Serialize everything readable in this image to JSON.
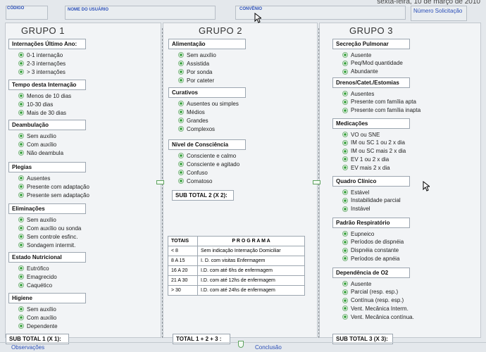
{
  "header": {
    "date_text": "sexta-feira, 10 de março de 2010",
    "codigo_label": "CÓDIGO",
    "nome_usuario_label": "NOME DO USUÁRIO",
    "convenio_label": "CONVÊNIO",
    "numero_solicitacao_label": "Número Solicitação"
  },
  "grupo1": {
    "title": "GRUPO 1",
    "sections": [
      {
        "title": "Internações Último Ano:",
        "options": [
          "0-1 internação",
          "2-3 internações",
          "> 3 internações"
        ]
      },
      {
        "title": "Tempo desta Internação",
        "options": [
          "Menos de 10 dias",
          "10-30 dias",
          "Mais de 30 dias"
        ]
      },
      {
        "title": "Deambulação",
        "options": [
          "Sem auxílio",
          "Com auxílio",
          "Não deambula"
        ]
      },
      {
        "title": "Plegias",
        "options": [
          "Ausentes",
          "Presente com adaptação",
          "Presente sem adaptação"
        ]
      },
      {
        "title": "Eliminações",
        "options": [
          "Sem auxílio",
          "Com auxílio ou sonda",
          "Sem controle esfinc.",
          "Sondagem intermit."
        ]
      },
      {
        "title": "Estado Nutricional",
        "options": [
          "Eutrófico",
          "Emagrecido",
          "Caquético"
        ]
      },
      {
        "title": "Higiene",
        "options": [
          "Sem auxílio",
          "Com auxílio",
          "Dependente"
        ]
      }
    ],
    "subtotal": "SUB TOTAL 1 (X 1):"
  },
  "grupo2": {
    "title": "GRUPO 2",
    "sections": [
      {
        "title": "Alimentação",
        "options": [
          "Sem auxílio",
          "Assistida",
          "Por sonda",
          "Por cateter"
        ]
      },
      {
        "title": "Curativos",
        "options": [
          "Ausentes ou simples",
          "Médios",
          "Grandes",
          "Complexos"
        ]
      },
      {
        "title": "Nível de Consciência",
        "options": [
          "Consciente e calmo",
          "Consciente e agitado",
          "Confuso",
          "Comatoso"
        ]
      }
    ],
    "subtotal": "SUB TOTAL 2 (X 2):"
  },
  "grupo3": {
    "title": "GRUPO 3",
    "sections": [
      {
        "title": "Secreção Pulmonar",
        "options": [
          "Ausente",
          "Peq/Mod quantidade",
          "Abundante"
        ]
      },
      {
        "title": "Drenos/Catet./Estomias",
        "options": [
          "Ausentes",
          "Presente com família apta",
          "Presente com família inapta"
        ]
      },
      {
        "title": "Medicações",
        "options": [
          "VO ou SNE",
          "IM ou SC 1 ou 2 x dia",
          "IM ou SC mais 2 x dia",
          "EV 1 ou 2 x dia",
          "EV mais 2 x dia"
        ]
      },
      {
        "title": "Quadro Clínico",
        "options": [
          "Estável",
          "Instabilidade parcial",
          "Instável"
        ]
      },
      {
        "title": "Padrão Respiratório",
        "options": [
          "Eupneico",
          "Períodos de dispnéia",
          "Dispnéia constante",
          "Períodos de apnéia"
        ]
      },
      {
        "title": "Dependência de O2",
        "options": [
          "Ausente",
          "Parcial (resp. esp.)",
          "Contínua (resp. esp.)",
          "Vent. Mecânica Interm.",
          "Vent. Mecânica contínua."
        ]
      }
    ],
    "subtotal": "SUB TOTAL 3 (X 3):"
  },
  "programa_table": {
    "col_totais": "TOTAIS",
    "col_programa": "P R O G R A M A",
    "rows": [
      {
        "total": "< 8",
        "programa": "Sem indicação Internação Domiciliar"
      },
      {
        "total": "8 A 15",
        "programa": "I. D. com visitas Enfermagem"
      },
      {
        "total": "16 A 20",
        "programa": "I.D. com até 6hs de enfermagem"
      },
      {
        "total": "21 A 30",
        "programa": "I.D. com até 12hs de enfermagem"
      },
      {
        "total": "> 30",
        "programa": "I.D. com até 24hs de enfermagem"
      }
    ]
  },
  "total_label": "TOTAL 1 + 2 + 3 :",
  "footer": {
    "observacoes": "Observações",
    "conclusao": "Conclusão"
  }
}
